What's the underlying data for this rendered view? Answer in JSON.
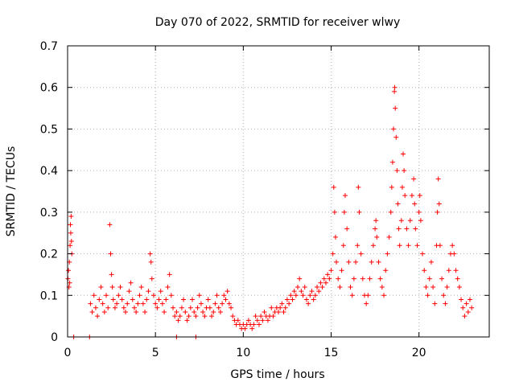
{
  "chart_data": {
    "type": "scatter",
    "title": "Day 070 of 2022, SRMTID for receiver wlwy",
    "xlabel": "GPS time / hours",
    "ylabel": "SRMTID / TECUs",
    "xlim": [
      0,
      24
    ],
    "ylim": [
      0,
      0.7
    ],
    "x_ticks": [
      0,
      5,
      10,
      15,
      20
    ],
    "y_ticks": [
      0,
      0.1,
      0.2,
      0.3,
      0.4,
      0.5,
      0.6,
      0.7
    ],
    "x_tick_labels": [
      "0",
      "5",
      "10",
      "15",
      "20"
    ],
    "y_tick_labels": [
      "0",
      "0.1",
      "0.2",
      "0.3",
      "0.4",
      "0.5",
      "0.6",
      "0.7"
    ],
    "grid": true,
    "marker": "+",
    "colors": {
      "series": "#ff0000",
      "grid": "#b0b0b0",
      "axis": "#000000"
    },
    "series": [
      {
        "name": "SRMTID",
        "points": [
          [
            0.02,
            0.14
          ],
          [
            0.05,
            0.16
          ],
          [
            0.08,
            0.12
          ],
          [
            0.1,
            0.18
          ],
          [
            0.12,
            0.13
          ],
          [
            0.14,
            0.22
          ],
          [
            0.16,
            0.27
          ],
          [
            0.18,
            0.25
          ],
          [
            0.2,
            0.29
          ],
          [
            0.22,
            0.23
          ],
          [
            0.24,
            0.2
          ],
          [
            1.3,
            0.08
          ],
          [
            1.4,
            0.06
          ],
          [
            1.5,
            0.1
          ],
          [
            1.6,
            0.07
          ],
          [
            1.7,
            0.05
          ],
          [
            1.8,
            0.09
          ],
          [
            1.9,
            0.12
          ],
          [
            2.0,
            0.08
          ],
          [
            2.1,
            0.06
          ],
          [
            2.2,
            0.1
          ],
          [
            2.3,
            0.07
          ],
          [
            2.4,
            0.27
          ],
          [
            2.45,
            0.2
          ],
          [
            2.5,
            0.15
          ],
          [
            2.55,
            0.12
          ],
          [
            2.6,
            0.09
          ],
          [
            2.7,
            0.07
          ],
          [
            2.8,
            0.08
          ],
          [
            2.9,
            0.1
          ],
          [
            3.0,
            0.12
          ],
          [
            3.1,
            0.09
          ],
          [
            3.2,
            0.07
          ],
          [
            3.3,
            0.06
          ],
          [
            3.4,
            0.08
          ],
          [
            3.5,
            0.11
          ],
          [
            3.6,
            0.13
          ],
          [
            3.7,
            0.09
          ],
          [
            3.8,
            0.07
          ],
          [
            3.9,
            0.06
          ],
          [
            4.0,
            0.08
          ],
          [
            4.1,
            0.1
          ],
          [
            4.2,
            0.12
          ],
          [
            4.3,
            0.08
          ],
          [
            4.4,
            0.06
          ],
          [
            4.5,
            0.09
          ],
          [
            4.6,
            0.11
          ],
          [
            4.7,
            0.2
          ],
          [
            4.75,
            0.18
          ],
          [
            4.8,
            0.14
          ],
          [
            4.9,
            0.1
          ],
          [
            5.0,
            0.08
          ],
          [
            5.1,
            0.07
          ],
          [
            5.2,
            0.09
          ],
          [
            5.3,
            0.11
          ],
          [
            5.4,
            0.08
          ],
          [
            5.5,
            0.06
          ],
          [
            5.6,
            0.09
          ],
          [
            5.7,
            0.12
          ],
          [
            5.8,
            0.15
          ],
          [
            5.9,
            0.1
          ],
          [
            6.0,
            0.07
          ],
          [
            6.1,
            0.05
          ],
          [
            6.2,
            0.06
          ],
          [
            6.3,
            0.04
          ],
          [
            6.4,
            0.05
          ],
          [
            6.5,
            0.07
          ],
          [
            6.6,
            0.09
          ],
          [
            6.7,
            0.06
          ],
          [
            6.8,
            0.04
          ],
          [
            6.9,
            0.05
          ],
          [
            7.0,
            0.07
          ],
          [
            7.1,
            0.09
          ],
          [
            7.2,
            0.06
          ],
          [
            7.3,
            0.05
          ],
          [
            7.4,
            0.07
          ],
          [
            7.5,
            0.1
          ],
          [
            7.6,
            0.08
          ],
          [
            7.7,
            0.06
          ],
          [
            7.8,
            0.05
          ],
          [
            7.9,
            0.07
          ],
          [
            8.0,
            0.09
          ],
          [
            8.1,
            0.07
          ],
          [
            8.2,
            0.05
          ],
          [
            8.3,
            0.06
          ],
          [
            8.4,
            0.08
          ],
          [
            8.5,
            0.1
          ],
          [
            8.6,
            0.07
          ],
          [
            8.7,
            0.06
          ],
          [
            8.8,
            0.08
          ],
          [
            8.9,
            0.1
          ],
          [
            9.0,
            0.09
          ],
          [
            9.1,
            0.11
          ],
          [
            9.2,
            0.08
          ],
          [
            9.3,
            0.07
          ],
          [
            9.4,
            0.05
          ],
          [
            9.5,
            0.04
          ],
          [
            9.6,
            0.03
          ],
          [
            9.7,
            0.04
          ],
          [
            9.8,
            0.03
          ],
          [
            9.9,
            0.02
          ],
          [
            10.0,
            0.03
          ],
          [
            10.1,
            0.02
          ],
          [
            10.2,
            0.03
          ],
          [
            10.3,
            0.04
          ],
          [
            10.4,
            0.03
          ],
          [
            10.5,
            0.02
          ],
          [
            10.6,
            0.03
          ],
          [
            10.7,
            0.05
          ],
          [
            10.8,
            0.04
          ],
          [
            10.9,
            0.03
          ],
          [
            11.0,
            0.05
          ],
          [
            11.1,
            0.04
          ],
          [
            11.2,
            0.06
          ],
          [
            11.3,
            0.05
          ],
          [
            11.4,
            0.04
          ],
          [
            11.5,
            0.05
          ],
          [
            11.6,
            0.07
          ],
          [
            11.7,
            0.05
          ],
          [
            11.8,
            0.06
          ],
          [
            11.9,
            0.07
          ],
          [
            12.0,
            0.06
          ],
          [
            12.1,
            0.07
          ],
          [
            12.2,
            0.08
          ],
          [
            12.3,
            0.06
          ],
          [
            12.4,
            0.07
          ],
          [
            12.5,
            0.09
          ],
          [
            12.6,
            0.08
          ],
          [
            12.7,
            0.1
          ],
          [
            12.8,
            0.09
          ],
          [
            12.9,
            0.11
          ],
          [
            13.0,
            0.1
          ],
          [
            13.1,
            0.12
          ],
          [
            13.2,
            0.14
          ],
          [
            13.3,
            0.11
          ],
          [
            13.4,
            0.1
          ],
          [
            13.5,
            0.12
          ],
          [
            13.6,
            0.09
          ],
          [
            13.7,
            0.08
          ],
          [
            13.8,
            0.1
          ],
          [
            13.9,
            0.11
          ],
          [
            14.0,
            0.09
          ],
          [
            14.1,
            0.1
          ],
          [
            14.2,
            0.12
          ],
          [
            14.3,
            0.11
          ],
          [
            14.4,
            0.13
          ],
          [
            14.5,
            0.12
          ],
          [
            14.6,
            0.14
          ],
          [
            14.7,
            0.13
          ],
          [
            14.8,
            0.15
          ],
          [
            14.9,
            0.14
          ],
          [
            15.0,
            0.16
          ],
          [
            15.1,
            0.2
          ],
          [
            15.15,
            0.36
          ],
          [
            15.2,
            0.3
          ],
          [
            15.25,
            0.24
          ],
          [
            15.3,
            0.18
          ],
          [
            15.4,
            0.14
          ],
          [
            15.5,
            0.12
          ],
          [
            15.6,
            0.16
          ],
          [
            15.7,
            0.22
          ],
          [
            15.75,
            0.3
          ],
          [
            15.8,
            0.34
          ],
          [
            15.9,
            0.26
          ],
          [
            16.0,
            0.18
          ],
          [
            16.1,
            0.12
          ],
          [
            16.2,
            0.1
          ],
          [
            16.3,
            0.14
          ],
          [
            16.4,
            0.18
          ],
          [
            16.5,
            0.22
          ],
          [
            16.55,
            0.36
          ],
          [
            16.6,
            0.3
          ],
          [
            16.7,
            0.2
          ],
          [
            16.8,
            0.14
          ],
          [
            16.9,
            0.1
          ],
          [
            17.0,
            0.08
          ],
          [
            17.1,
            0.1
          ],
          [
            17.2,
            0.14
          ],
          [
            17.3,
            0.18
          ],
          [
            17.4,
            0.22
          ],
          [
            17.5,
            0.26
          ],
          [
            17.55,
            0.28
          ],
          [
            17.6,
            0.24
          ],
          [
            17.7,
            0.18
          ],
          [
            17.8,
            0.14
          ],
          [
            17.9,
            0.12
          ],
          [
            18.0,
            0.1
          ],
          [
            18.1,
            0.16
          ],
          [
            18.2,
            0.2
          ],
          [
            18.3,
            0.24
          ],
          [
            18.4,
            0.3
          ],
          [
            18.45,
            0.36
          ],
          [
            18.5,
            0.42
          ],
          [
            18.55,
            0.5
          ],
          [
            18.6,
            0.59
          ],
          [
            18.62,
            0.6
          ],
          [
            18.65,
            0.55
          ],
          [
            18.7,
            0.48
          ],
          [
            18.75,
            0.4
          ],
          [
            18.8,
            0.32
          ],
          [
            18.85,
            0.26
          ],
          [
            18.9,
            0.22
          ],
          [
            19.0,
            0.28
          ],
          [
            19.05,
            0.36
          ],
          [
            19.1,
            0.44
          ],
          [
            19.15,
            0.4
          ],
          [
            19.2,
            0.34
          ],
          [
            19.3,
            0.26
          ],
          [
            19.4,
            0.22
          ],
          [
            19.5,
            0.28
          ],
          [
            19.6,
            0.34
          ],
          [
            19.7,
            0.38
          ],
          [
            19.75,
            0.32
          ],
          [
            19.8,
            0.26
          ],
          [
            19.9,
            0.22
          ],
          [
            20.0,
            0.3
          ],
          [
            20.05,
            0.34
          ],
          [
            20.1,
            0.28
          ],
          [
            20.2,
            0.2
          ],
          [
            20.3,
            0.16
          ],
          [
            20.4,
            0.12
          ],
          [
            20.5,
            0.1
          ],
          [
            20.6,
            0.14
          ],
          [
            20.7,
            0.18
          ],
          [
            20.8,
            0.12
          ],
          [
            20.9,
            0.08
          ],
          [
            21.0,
            0.22
          ],
          [
            21.05,
            0.3
          ],
          [
            21.1,
            0.38
          ],
          [
            21.15,
            0.32
          ],
          [
            21.2,
            0.22
          ],
          [
            21.3,
            0.14
          ],
          [
            21.4,
            0.1
          ],
          [
            21.5,
            0.08
          ],
          [
            21.6,
            0.12
          ],
          [
            21.7,
            0.16
          ],
          [
            21.8,
            0.2
          ],
          [
            21.9,
            0.22
          ],
          [
            22.0,
            0.2
          ],
          [
            22.1,
            0.16
          ],
          [
            22.2,
            0.14
          ],
          [
            22.3,
            0.12
          ],
          [
            22.4,
            0.09
          ],
          [
            22.5,
            0.07
          ],
          [
            22.6,
            0.05
          ],
          [
            22.7,
            0.08
          ],
          [
            22.8,
            0.06
          ],
          [
            22.9,
            0.09
          ],
          [
            23.0,
            0.07
          ],
          [
            0.35,
            0.0
          ],
          [
            1.25,
            0.0
          ],
          [
            6.2,
            0.0
          ],
          [
            7.3,
            0.0
          ]
        ]
      }
    ]
  }
}
